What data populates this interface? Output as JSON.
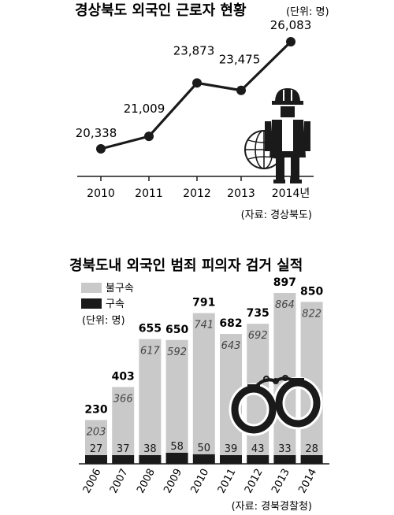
{
  "chart_data": [
    {
      "type": "line",
      "title": "경상북도 외국인 근로자 현황",
      "unit_note": "(단위: 명)",
      "categories": [
        "2010",
        "2011",
        "2012",
        "2013",
        "2014년"
      ],
      "series": [
        {
          "values": [
            20338,
            21009,
            23873,
            23475,
            26083
          ]
        }
      ],
      "value_labels": [
        "20,338",
        "21,009",
        "23,873",
        "23,475",
        "26,083"
      ],
      "ylim": [
        19500,
        26500
      ],
      "source": "(자료: 경상북도)",
      "colors": {
        "line": "#1a1a1a"
      }
    },
    {
      "type": "bar",
      "stacked": true,
      "title": "경북도내 외국인 범죄 피의자 검거 실적",
      "unit_note": "(단위: 명)",
      "categories": [
        "2006",
        "2007",
        "2008",
        "2009",
        "2010",
        "2011",
        "2012",
        "2013",
        "2014"
      ],
      "series": [
        {
          "name": "불구속",
          "values": [
            203,
            366,
            617,
            592,
            741,
            643,
            692,
            864,
            822
          ]
        },
        {
          "name": "구속",
          "values": [
            27,
            37,
            38,
            58,
            50,
            39,
            43,
            33,
            28
          ]
        }
      ],
      "totals": [
        230,
        403,
        655,
        650,
        791,
        682,
        735,
        897,
        850
      ],
      "ylim": [
        0,
        950
      ],
      "source": "(자료: 경북경찰청)",
      "colors": {
        "불구속": "#c9c9c9",
        "구속": "#1a1a1a"
      }
    }
  ]
}
